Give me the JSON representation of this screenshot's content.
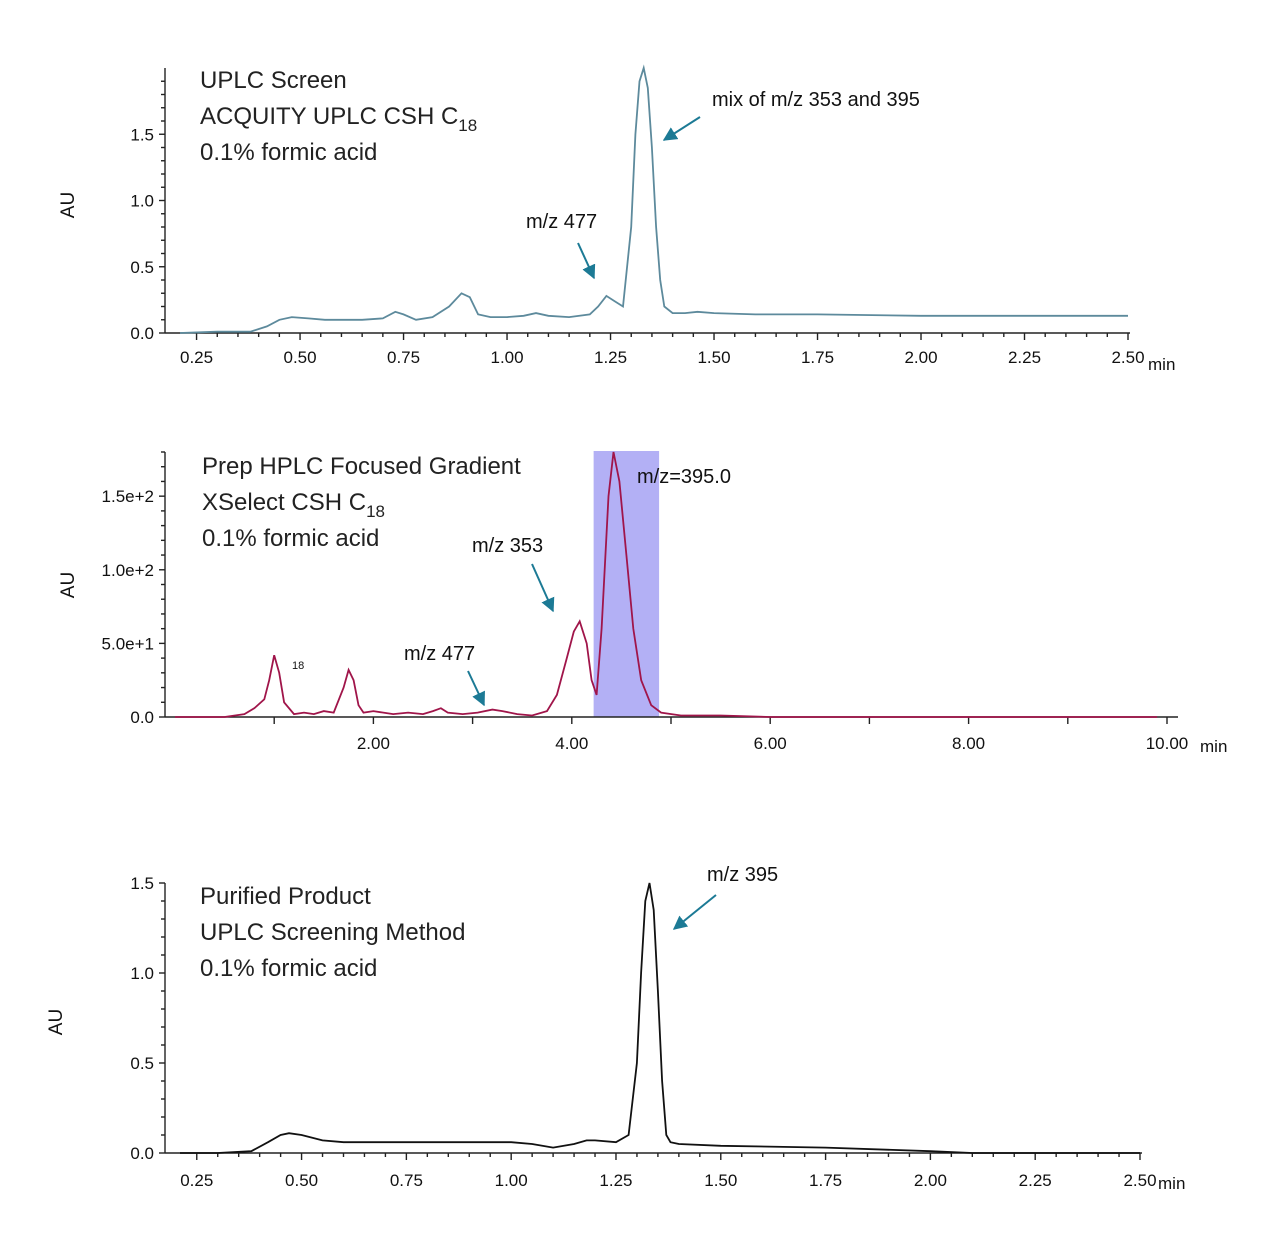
{
  "chart_data": [
    {
      "type": "line",
      "title_lines": [
        "UPLC Screen",
        "ACQUITY UPLC CSH C",
        "0.1% formic acid"
      ],
      "title_sub": "18",
      "ylabel": "AU",
      "x_unit": "min",
      "xlim": [
        0.21,
        2.5
      ],
      "ylim": [
        0,
        2.0
      ],
      "x_ticks": [
        0.25,
        0.5,
        0.75,
        1.0,
        1.25,
        1.5,
        1.75,
        2.0,
        2.25,
        2.5
      ],
      "x_tick_labels": [
        "0.25",
        "0.50",
        "0.75",
        "1.00",
        "1.25",
        "1.50",
        "1.75",
        "2.00",
        "2.25",
        "2.50"
      ],
      "y_ticks": [
        0,
        0.5,
        1.0,
        1.5
      ],
      "y_tick_labels": [
        "0.0",
        "0.5",
        "1.0",
        "1.5"
      ],
      "color": "#5d8a9c",
      "series": [
        {
          "x": [
            0.21,
            0.3,
            0.38,
            0.42,
            0.45,
            0.48,
            0.52,
            0.56,
            0.6,
            0.65,
            0.7,
            0.73,
            0.75,
            0.78,
            0.82,
            0.86,
            0.89,
            0.91,
            0.93,
            0.96,
            1.0,
            1.04,
            1.07,
            1.1,
            1.15,
            1.2,
            1.22,
            1.24,
            1.26,
            1.28,
            1.3,
            1.31,
            1.32,
            1.33,
            1.34,
            1.35,
            1.36,
            1.37,
            1.38,
            1.4,
            1.43,
            1.46,
            1.5,
            1.6,
            1.75,
            2.0,
            2.25,
            2.5
          ],
          "y": [
            0.0,
            0.01,
            0.01,
            0.05,
            0.1,
            0.12,
            0.11,
            0.1,
            0.1,
            0.1,
            0.11,
            0.16,
            0.14,
            0.1,
            0.12,
            0.2,
            0.3,
            0.27,
            0.14,
            0.12,
            0.12,
            0.13,
            0.15,
            0.13,
            0.12,
            0.14,
            0.2,
            0.28,
            0.24,
            0.2,
            0.8,
            1.5,
            1.9,
            2.0,
            1.85,
            1.4,
            0.8,
            0.4,
            0.2,
            0.15,
            0.15,
            0.16,
            0.15,
            0.14,
            0.14,
            0.13,
            0.13,
            0.13
          ]
        }
      ],
      "annotations": [
        {
          "text": "mix of m/z 353 and 395"
        },
        {
          "text": "m/z 477"
        }
      ]
    },
    {
      "type": "line",
      "title_lines": [
        "Prep HPLC Focused Gradient",
        "XSelect CSH C",
        "0.1% formic acid"
      ],
      "title_sub": "18",
      "stray_text": "18",
      "ylabel": "AU",
      "x_unit": "min",
      "xlim": [
        0.0,
        10.0
      ],
      "ylim": [
        0,
        180
      ],
      "x_ticks": [
        2.0,
        4.0,
        6.0,
        8.0,
        10.0
      ],
      "x_tick_labels": [
        "2.00",
        "4.00",
        "6.00",
        "8.00",
        "10.00"
      ],
      "x_minor_ticks": [
        1.0,
        3.0,
        5.0,
        7.0,
        9.0
      ],
      "y_ticks": [
        0,
        50,
        100,
        150
      ],
      "y_tick_labels": [
        "0.0",
        "5.0e+1",
        "1.0e+2",
        "1.5e+2"
      ],
      "color": "#a0154a",
      "highlight_region": {
        "x_range": [
          4.22,
          4.88
        ],
        "color": "#b3b0f5"
      },
      "series": [
        {
          "x": [
            0.0,
            0.5,
            0.7,
            0.8,
            0.9,
            0.95,
            1.0,
            1.05,
            1.1,
            1.2,
            1.3,
            1.4,
            1.5,
            1.6,
            1.7,
            1.75,
            1.8,
            1.85,
            1.9,
            2.0,
            2.1,
            2.2,
            2.35,
            2.5,
            2.6,
            2.68,
            2.75,
            2.9,
            3.05,
            3.2,
            3.3,
            3.45,
            3.6,
            3.75,
            3.85,
            3.95,
            4.02,
            4.08,
            4.15,
            4.2,
            4.25,
            4.3,
            4.37,
            4.42,
            4.48,
            4.55,
            4.62,
            4.7,
            4.8,
            4.9,
            5.1,
            5.5,
            6.0,
            7.0,
            8.0,
            9.0,
            9.9
          ],
          "y": [
            0,
            0,
            2,
            6,
            12,
            25,
            42,
            30,
            10,
            2,
            3,
            2,
            4,
            3,
            20,
            32,
            25,
            8,
            3,
            4,
            3,
            2,
            3,
            2,
            4,
            6,
            3,
            2,
            3,
            5,
            4,
            2,
            1,
            4,
            15,
            40,
            58,
            65,
            50,
            25,
            15,
            60,
            150,
            180,
            160,
            110,
            60,
            25,
            8,
            3,
            1,
            1,
            0,
            0,
            0,
            0,
            0
          ]
        }
      ],
      "annotations": [
        {
          "text": "m/z=395.0"
        },
        {
          "text": "m/z 353"
        },
        {
          "text": "m/z 477"
        }
      ]
    },
    {
      "type": "line",
      "title_lines": [
        "Purified Product",
        "UPLC Screening Method",
        "0.1% formic acid"
      ],
      "ylabel": "AU",
      "x_unit": "min",
      "xlim": [
        0.21,
        2.5
      ],
      "ylim": [
        0,
        1.5
      ],
      "x_ticks": [
        0.25,
        0.5,
        0.75,
        1.0,
        1.25,
        1.5,
        1.75,
        2.0,
        2.25,
        2.5
      ],
      "x_tick_labels": [
        "0.25",
        "0.50",
        "0.75",
        "1.00",
        "1.25",
        "1.50",
        "1.75",
        "2.00",
        "2.25",
        "2.50"
      ],
      "y_ticks": [
        0,
        0.5,
        1.0,
        1.5
      ],
      "y_tick_labels": [
        "0.0",
        "0.5",
        "1.0",
        "1.5"
      ],
      "color": "#111111",
      "series": [
        {
          "x": [
            0.21,
            0.3,
            0.38,
            0.42,
            0.45,
            0.47,
            0.5,
            0.55,
            0.6,
            0.7,
            0.8,
            0.9,
            1.0,
            1.05,
            1.1,
            1.15,
            1.18,
            1.2,
            1.25,
            1.28,
            1.3,
            1.31,
            1.32,
            1.33,
            1.34,
            1.35,
            1.36,
            1.37,
            1.38,
            1.4,
            1.5,
            1.75,
            2.0,
            2.1,
            2.25,
            2.5
          ],
          "y": [
            0.0,
            0.0,
            0.01,
            0.06,
            0.1,
            0.11,
            0.1,
            0.07,
            0.06,
            0.06,
            0.06,
            0.06,
            0.06,
            0.05,
            0.03,
            0.05,
            0.07,
            0.07,
            0.06,
            0.1,
            0.5,
            1.0,
            1.4,
            1.5,
            1.35,
            0.9,
            0.4,
            0.1,
            0.06,
            0.05,
            0.04,
            0.03,
            0.01,
            0.0,
            0.0,
            0.0
          ]
        }
      ],
      "annotations": [
        {
          "text": "m/z 395"
        }
      ]
    }
  ]
}
